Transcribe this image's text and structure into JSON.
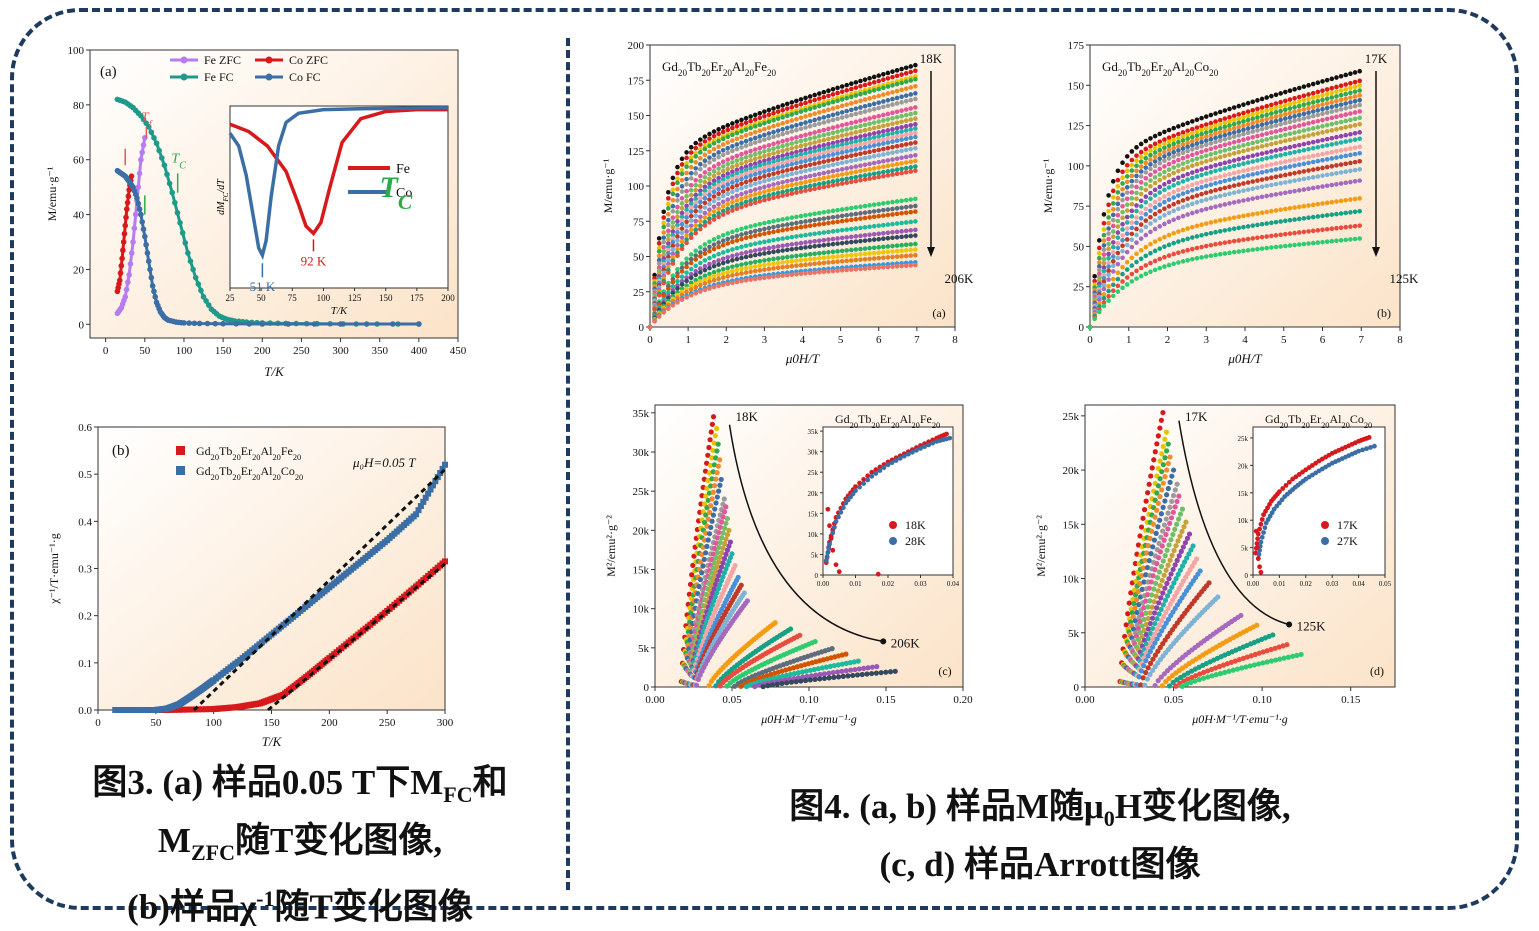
{
  "theme": {
    "frame_color": "#1f3a5f",
    "panel_bg_start": "#ffffff",
    "panel_bg_end": "#fbe3c8",
    "red": "#d7191c",
    "blue": "#3b6ea5",
    "purple": "#b57cf0",
    "teal": "#1f9a8a",
    "green": "#2eaa4a",
    "black": "#111111"
  },
  "captions": {
    "fig3": [
      "图3. (a) 样品0.05 T下M",
      "FC",
      "和",
      "M",
      "ZFC",
      "随T变化图像,",
      "(b)样品χ",
      "-1",
      "随T变化图像"
    ],
    "fig4": [
      "图4.  (a, b) 样品M随μ",
      "0",
      "H变化图像,",
      "(c, d) 样品Arrott图像"
    ]
  },
  "chart_data": [
    {
      "id": "fig3a",
      "type": "line",
      "panel_label": "(a)",
      "xlabel": "T/K",
      "ylabel": "M/emu·g⁻¹",
      "xlim": [
        -20,
        450
      ],
      "ylim": [
        -5,
        100
      ],
      "xticks": [
        0,
        50,
        100,
        150,
        200,
        250,
        300,
        350,
        400,
        450
      ],
      "yticks": [
        0,
        20,
        40,
        60,
        80,
        100
      ],
      "legend": [
        "Fe ZFC",
        "Fe FC",
        "Co ZFC",
        "Co FC"
      ],
      "series": [
        {
          "name": "Fe ZFC",
          "color": "#b57cf0",
          "x": [
            15,
            20,
            25,
            30,
            35,
            40,
            45,
            50
          ],
          "y": [
            4,
            6,
            10,
            18,
            30,
            45,
            60,
            68
          ]
        },
        {
          "name": "Fe FC",
          "color": "#1f9a8a",
          "x": [
            15,
            25,
            35,
            45,
            55,
            65,
            75,
            85,
            95,
            105,
            115,
            125,
            135,
            145,
            155,
            165,
            180,
            200,
            230,
            270,
            320,
            400
          ],
          "y": [
            82,
            81,
            79,
            76,
            72,
            66,
            58,
            48,
            37,
            26,
            17,
            10,
            5.5,
            3,
            1.8,
            1.2,
            0.8,
            0.5,
            0.3,
            0.2,
            0.1,
            0.1
          ]
        },
        {
          "name": "Co ZFC",
          "color": "#d7191c",
          "x": [
            15,
            18,
            21,
            24,
            27,
            30,
            33
          ],
          "y": [
            12,
            16,
            24,
            33,
            42,
            49,
            54
          ]
        },
        {
          "name": "Co FC",
          "color": "#3b6ea5",
          "x": [
            15,
            20,
            25,
            30,
            35,
            40,
            45,
            50,
            55,
            60,
            65,
            70,
            75,
            80,
            90,
            100,
            120,
            150,
            200,
            300,
            400
          ],
          "y": [
            56,
            55,
            54,
            52,
            50,
            46,
            40,
            32,
            23,
            14,
            8,
            4.5,
            2.5,
            1.5,
            0.8,
            0.5,
            0.3,
            0.2,
            0.1,
            0.1,
            0.1
          ]
        }
      ],
      "annotations": {
        "tf": "T",
        "tf_sub": "f",
        "tc": "T",
        "tc_sub": "C"
      },
      "inset": {
        "xlabel": "T/K",
        "ylabel": "dM",
        "ylabel_sub": "FC",
        "ylabel_end": "/dT",
        "xlim": [
          25,
          200
        ],
        "xticks": [
          25,
          50,
          75,
          100,
          125,
          150,
          175,
          200
        ],
        "legend": [
          "Fe",
          "Co"
        ],
        "fe": {
          "x": [
            25,
            40,
            55,
            70,
            80,
            86,
            92,
            98,
            105,
            115,
            130,
            150,
            175,
            200
          ],
          "y": [
            0.9,
            0.86,
            0.78,
            0.64,
            0.46,
            0.34,
            0.3,
            0.36,
            0.55,
            0.8,
            0.93,
            0.97,
            0.98,
            0.98
          ]
        },
        "co": {
          "x": [
            25,
            32,
            38,
            44,
            48,
            51,
            54,
            58,
            64,
            70,
            80,
            100,
            130,
            200
          ],
          "y": [
            0.85,
            0.78,
            0.62,
            0.38,
            0.22,
            0.18,
            0.26,
            0.5,
            0.78,
            0.91,
            0.96,
            0.98,
            0.985,
            0.99
          ]
        },
        "label_fe_min": "92 K",
        "label_co_min": "51 K",
        "tc": "T",
        "tc_sub": "C"
      }
    },
    {
      "id": "fig3b",
      "type": "line",
      "panel_label": "(b)",
      "xlabel": "T/K",
      "ylabel": "χ⁻¹/T·emu⁻¹·g",
      "xlim": [
        0,
        300
      ],
      "ylim": [
        0,
        0.6
      ],
      "xticks": [
        0,
        50,
        100,
        150,
        200,
        250,
        300
      ],
      "yticks": [
        0.0,
        0.1,
        0.2,
        0.3,
        0.4,
        0.5,
        0.6
      ],
      "field_label": "μ₀H=0.05 T",
      "legend": [
        "Gd20Tb20Er20Al20Fe20",
        "Gd20Tb20Er20Al20Co20"
      ],
      "series": [
        {
          "name": "Gd20Tb20Er20Al20Fe20",
          "color": "#d7191c",
          "x": [
            15,
            60,
            100,
            120,
            140,
            160,
            180,
            200,
            225,
            250,
            275,
            300
          ],
          "y": [
            0,
            0,
            0.002,
            0.006,
            0.014,
            0.032,
            0.07,
            0.11,
            0.16,
            0.21,
            0.262,
            0.315
          ]
        },
        {
          "name": "Gd20Tb20Er20Al20Co20",
          "color": "#3b6ea5",
          "x": [
            15,
            50,
            60,
            70,
            80,
            90,
            100,
            125,
            150,
            175,
            200,
            225,
            250,
            275,
            300
          ],
          "y": [
            0,
            0,
            0.003,
            0.012,
            0.028,
            0.045,
            0.063,
            0.11,
            0.16,
            0.21,
            0.26,
            0.31,
            0.36,
            0.415,
            0.52
          ]
        }
      ],
      "fits": [
        {
          "x": [
            147,
            300
          ],
          "y": [
            0,
            0.31
          ]
        },
        {
          "x": [
            83,
            300
          ],
          "y": [
            0,
            0.51
          ]
        }
      ]
    },
    {
      "id": "fig4a",
      "type": "line",
      "panel_label": "(a)",
      "composition": "Gd20Tb20Er20Al20Fe20",
      "xlabel": "μ0H/T",
      "ylabel": "M/emu·g⁻¹",
      "xlim": [
        0,
        8
      ],
      "ylim": [
        0,
        200
      ],
      "xticks": [
        0,
        1,
        2,
        3,
        4,
        5,
        6,
        7,
        8
      ],
      "yticks": [
        0,
        25,
        50,
        75,
        100,
        125,
        150,
        175,
        200
      ],
      "temp_top": "18K",
      "temp_bottom": "206K",
      "curve_type": "magnetization",
      "max_field": 7,
      "sat_values": [
        186,
        182,
        178,
        176,
        171,
        166,
        162,
        156,
        152,
        148,
        144,
        141,
        138,
        135,
        131,
        127,
        122,
        118,
        114,
        111,
        91,
        86,
        82,
        75,
        69,
        65,
        59,
        55,
        51,
        46,
        44
      ],
      "knee_field": 0.35
    },
    {
      "id": "fig4b",
      "type": "line",
      "panel_label": "(b)",
      "composition": "Gd20Tb20Er20Al20Co20",
      "xlabel": "μ0H/T",
      "ylabel": "M/emu·g⁻¹",
      "xlim": [
        0,
        8
      ],
      "ylim": [
        0,
        175
      ],
      "xticks": [
        0,
        1,
        2,
        3,
        4,
        5,
        6,
        7,
        8
      ],
      "yticks": [
        0,
        25,
        50,
        75,
        100,
        125,
        150,
        175
      ],
      "temp_top": "17K",
      "temp_bottom": "125K",
      "curve_type": "magnetization",
      "max_field": 7,
      "sat_values": [
        159,
        153,
        150,
        147,
        144,
        141,
        138,
        134,
        130,
        126,
        121,
        117,
        112,
        108,
        103,
        98,
        91,
        80,
        72,
        63,
        55
      ],
      "knee_field": 0.35
    },
    {
      "id": "fig4c",
      "type": "scatter",
      "panel_label": "(c)",
      "xlabel": "μ0H·M⁻¹/T·emu⁻¹·g",
      "ylabel": "M²/emu²·g⁻²",
      "xlim": [
        0,
        0.2
      ],
      "ylim": [
        0,
        36000
      ],
      "xticks": [
        "0.00",
        "0.05",
        "0.10",
        "0.15",
        "0.20"
      ],
      "yticks": [
        "0",
        "5k",
        "10k",
        "15k",
        "20k",
        "25k",
        "30k",
        "35k"
      ],
      "temp_top": "18K",
      "temp_bottom": "206K",
      "curves": [
        {
          "x_end": 0.038,
          "y_end": 34500
        },
        {
          "x_end": 0.04,
          "y_end": 33000
        },
        {
          "x_end": 0.041,
          "y_end": 31000
        },
        {
          "x_end": 0.042,
          "y_end": 29000
        },
        {
          "x_end": 0.043,
          "y_end": 26500
        },
        {
          "x_end": 0.045,
          "y_end": 24000
        },
        {
          "x_end": 0.046,
          "y_end": 23000
        },
        {
          "x_end": 0.047,
          "y_end": 21500
        },
        {
          "x_end": 0.048,
          "y_end": 20000
        },
        {
          "x_end": 0.049,
          "y_end": 18500
        },
        {
          "x_end": 0.05,
          "y_end": 17000
        },
        {
          "x_end": 0.052,
          "y_end": 15500
        },
        {
          "x_end": 0.054,
          "y_end": 14000
        },
        {
          "x_end": 0.056,
          "y_end": 13000
        },
        {
          "x_end": 0.058,
          "y_end": 12000
        },
        {
          "x_end": 0.06,
          "y_end": 11000
        },
        {
          "x_end": 0.078,
          "y_end": 8200
        },
        {
          "x_end": 0.088,
          "y_end": 7400
        },
        {
          "x_end": 0.094,
          "y_end": 6600
        },
        {
          "x_end": 0.104,
          "y_end": 5800
        },
        {
          "x_end": 0.115,
          "y_end": 4900
        },
        {
          "x_end": 0.124,
          "y_end": 4200
        },
        {
          "x_end": 0.132,
          "y_end": 3300
        },
        {
          "x_end": 0.144,
          "y_end": 2600
        },
        {
          "x_end": 0.156,
          "y_end": 2000
        }
      ],
      "inset": {
        "title": "Gd20Tb20Er20Al20Fe20",
        "xticks": [
          "0.00",
          "0.01",
          "0.02",
          "0.03",
          "0.04"
        ],
        "yticks": [
          "0",
          "5k",
          "10k",
          "15k",
          "20k",
          "25k",
          "30k",
          "35k"
        ],
        "xlim": [
          0,
          0.04
        ],
        "ylim": [
          0,
          36000
        ],
        "legend": [
          "18K",
          "28K"
        ],
        "c18": {
          "x": [
            0.001,
            0.002,
            0.004,
            0.007,
            0.01,
            0.015,
            0.02,
            0.025,
            0.03,
            0.035,
            0.038
          ],
          "y": [
            3000,
            8000,
            14000,
            18500,
            21500,
            25000,
            27500,
            29500,
            31500,
            33300,
            34300
          ]
        },
        "c28": {
          "x": [
            0.001,
            0.002,
            0.004,
            0.007,
            0.01,
            0.015,
            0.02,
            0.025,
            0.03,
            0.035,
            0.039
          ],
          "y": [
            3500,
            7500,
            13000,
            17500,
            20500,
            24000,
            26800,
            28900,
            30800,
            32500,
            33300
          ]
        },
        "c18_tail": {
          "x": [
            0.0015,
            0.002,
            0.0025,
            0.003,
            0.004,
            0.005,
            0.017
          ],
          "y": [
            16000,
            12000,
            9000,
            6000,
            2500,
            800,
            200
          ]
        }
      }
    },
    {
      "id": "fig4d",
      "type": "scatter",
      "panel_label": "(d)",
      "xlabel": "μ0H·M⁻¹/T·emu⁻¹·g",
      "ylabel": "M²/emu²·g⁻²",
      "xlim": [
        0,
        0.175
      ],
      "ylim": [
        0,
        26000
      ],
      "xticks": [
        "0.00",
        "0.05",
        "0.10",
        "0.15"
      ],
      "yticks": [
        "0",
        "5k",
        "10k",
        "15k",
        "20k",
        "25k"
      ],
      "temp_top": "17K",
      "temp_bottom": "125K",
      "curves": [
        {
          "x_end": 0.044,
          "y_end": 25300
        },
        {
          "x_end": 0.046,
          "y_end": 23500
        },
        {
          "x_end": 0.047,
          "y_end": 22400
        },
        {
          "x_end": 0.048,
          "y_end": 21200
        },
        {
          "x_end": 0.05,
          "y_end": 20000
        },
        {
          "x_end": 0.052,
          "y_end": 18700
        },
        {
          "x_end": 0.053,
          "y_end": 17600
        },
        {
          "x_end": 0.055,
          "y_end": 16400
        },
        {
          "x_end": 0.057,
          "y_end": 15200
        },
        {
          "x_end": 0.059,
          "y_end": 14100
        },
        {
          "x_end": 0.061,
          "y_end": 13000
        },
        {
          "x_end": 0.063,
          "y_end": 11800
        },
        {
          "x_end": 0.065,
          "y_end": 10700
        },
        {
          "x_end": 0.07,
          "y_end": 9600
        },
        {
          "x_end": 0.075,
          "y_end": 8300
        },
        {
          "x_end": 0.088,
          "y_end": 6600
        },
        {
          "x_end": 0.097,
          "y_end": 5700
        },
        {
          "x_end": 0.106,
          "y_end": 4800
        },
        {
          "x_end": 0.114,
          "y_end": 3900
        },
        {
          "x_end": 0.122,
          "y_end": 3000
        }
      ],
      "inset": {
        "title": "Gd20Tb20Er20Al20Co20",
        "xticks": [
          "0.00",
          "0.01",
          "0.02",
          "0.03",
          "0.04",
          "0.05"
        ],
        "yticks": [
          "0",
          "5k",
          "10k",
          "15k",
          "20k",
          "25k"
        ],
        "xlim": [
          0,
          0.05
        ],
        "ylim": [
          0,
          27000
        ],
        "legend": [
          "17K",
          "27K"
        ],
        "c17": {
          "x": [
            0.001,
            0.002,
            0.004,
            0.007,
            0.01,
            0.015,
            0.02,
            0.025,
            0.03,
            0.035,
            0.04,
            0.044
          ],
          "y": [
            4000,
            7500,
            11000,
            13500,
            15200,
            17500,
            19200,
            20800,
            22200,
            23300,
            24400,
            25100
          ]
        },
        "c27": {
          "x": [
            0.002,
            0.003,
            0.005,
            0.008,
            0.012,
            0.016,
            0.02,
            0.025,
            0.03,
            0.035,
            0.04,
            0.046
          ],
          "y": [
            3000,
            6000,
            9500,
            12000,
            14300,
            16000,
            17500,
            19000,
            20400,
            21500,
            22600,
            23500
          ]
        },
        "c17_tail": {
          "x": [
            0.0012,
            0.0016,
            0.002,
            0.0025,
            0.003
          ],
          "y": [
            8000,
            5000,
            3000,
            1500,
            500
          ]
        }
      }
    }
  ]
}
